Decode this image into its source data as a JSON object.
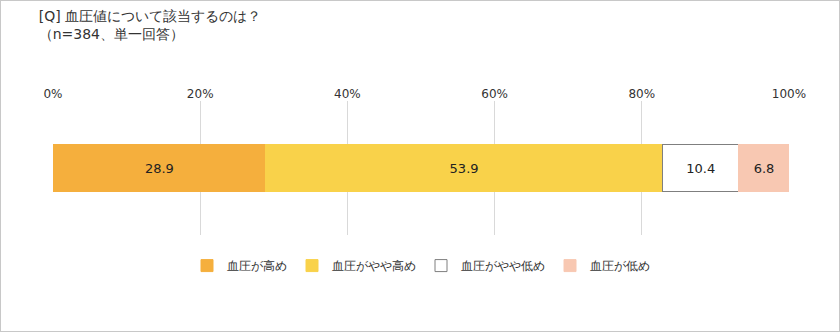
{
  "chart_data": {
    "type": "bar",
    "title": "[Q] 血圧値について該当するのは？",
    "subtitle": "（n=384、単一回答）",
    "orientation": "horizontal",
    "stacked": true,
    "data_labels": true,
    "grid": true,
    "legend": "bottom",
    "tick_labels": "x",
    "categories": [
      null
    ],
    "series": [
      {
        "name": "血圧が高め",
        "color": "#F5AF3D",
        "values": [
          28.9
        ]
      },
      {
        "name": "血圧がやや高め",
        "color": "#F9D24A",
        "values": [
          53.9
        ]
      },
      {
        "name": "血圧がやや低め",
        "color": "#FFFFFF",
        "values": [
          10.4
        ]
      },
      {
        "name": "血圧が低め",
        "color": "#F8C8B2",
        "values": [
          6.8
        ]
      }
    ],
    "xlim": [
      0,
      100
    ],
    "xticks": [
      {
        "value": 0,
        "label": "0%"
      },
      {
        "value": 20,
        "label": "20%"
      },
      {
        "value": 40,
        "label": "40%"
      },
      {
        "value": 60,
        "label": "60%"
      },
      {
        "value": 80,
        "label": "80%"
      },
      {
        "value": 100,
        "label": "100%"
      }
    ]
  }
}
